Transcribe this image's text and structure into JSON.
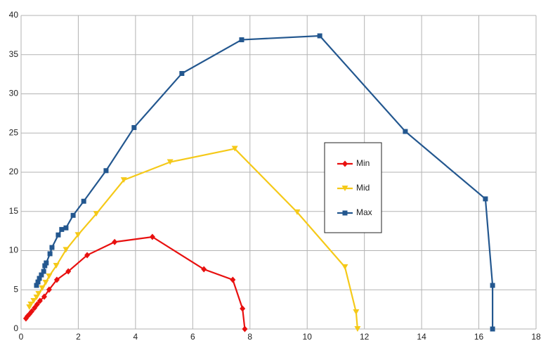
{
  "chart_data": {
    "type": "line",
    "grid": true,
    "legend": "center-right",
    "xlim": [
      0,
      18
    ],
    "xticks": [
      0,
      2,
      4,
      6,
      8,
      10,
      12,
      14,
      16,
      18
    ],
    "ylim": [
      0,
      40
    ],
    "yticks": [
      0,
      5,
      10,
      15,
      20,
      25,
      30,
      35,
      40
    ],
    "series": [
      {
        "name": "Min",
        "color": "#e8100f",
        "marker": "diamond",
        "x": [
          0.17,
          0.22,
          0.29,
          0.37,
          0.47,
          0.56,
          0.66,
          0.81,
          0.98,
          1.25,
          1.65,
          2.31,
          3.27,
          4.59,
          6.39,
          7.4,
          7.74,
          7.82
        ],
        "values": [
          1.35,
          1.61,
          1.88,
          2.24,
          2.69,
          3.14,
          3.59,
          4.13,
          5.02,
          6.28,
          7.35,
          9.42,
          11.1,
          11.75,
          7.62,
          6.28,
          2.6,
          0
        ]
      },
      {
        "name": "Mid",
        "color": "#f5c918",
        "marker": "triangle",
        "x": [
          0.29,
          0.34,
          0.44,
          0.54,
          0.61,
          0.74,
          0.86,
          0.98,
          1.23,
          1.57,
          1.99,
          2.63,
          3.59,
          5.21,
          7.47,
          9.65,
          11.32,
          11.71,
          11.76
        ],
        "values": [
          2.78,
          3.14,
          3.59,
          4.04,
          4.48,
          5.2,
          5.92,
          6.73,
          8.07,
          10.1,
          12.0,
          14.7,
          19.0,
          21.3,
          23.0,
          14.9,
          7.9,
          2.15,
          0
        ]
      },
      {
        "name": "Max",
        "color": "#23578f",
        "marker": "square",
        "x": [
          0.54,
          0.59,
          0.64,
          0.71,
          0.79,
          0.83,
          0.88,
          1.01,
          1.08,
          1.3,
          1.42,
          1.57,
          1.82,
          2.19,
          2.97,
          3.95,
          5.62,
          7.71,
          10.44,
          13.43,
          16.23,
          16.48,
          16.48
        ],
        "values": [
          5.56,
          6.0,
          6.46,
          6.9,
          7.35,
          8.07,
          8.43,
          9.6,
          10.4,
          12.0,
          12.7,
          12.9,
          14.5,
          16.3,
          20.2,
          25.7,
          32.6,
          36.9,
          37.4,
          25.2,
          16.6,
          5.56,
          0
        ]
      }
    ]
  }
}
